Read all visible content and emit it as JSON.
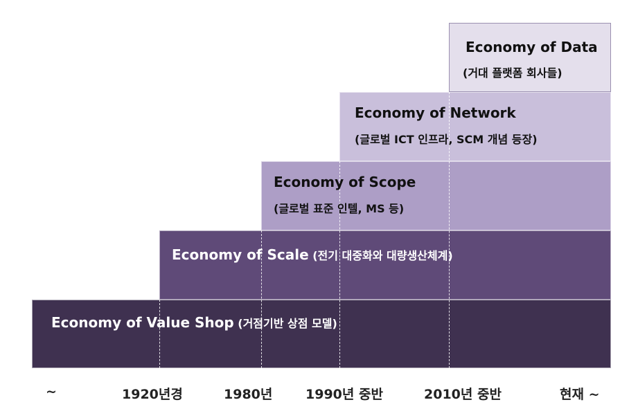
{
  "stages": {
    "value_shop": {
      "title": "Economy of Value Shop",
      "desc": "(거점기반 상점 모델)"
    },
    "scale": {
      "title": "Economy of Scale",
      "desc": "(전기 대중화와 대량생산체계)"
    },
    "scope": {
      "title": "Economy of Scope",
      "desc": "(글로벌 표준 인텔, MS 등)"
    },
    "network": {
      "title": "Economy of Network",
      "desc": "(글로벌 ICT 인프라, SCM 개념 등장)"
    },
    "data": {
      "title": "Economy of Data",
      "desc": "(거대 플랫폼 회사들)"
    }
  },
  "timeline": {
    "ticks": [
      "~",
      "1920년경",
      "1980년",
      "1990년 중반",
      "2010년 중반",
      "현재 ~"
    ]
  },
  "colors": {
    "value_shop": "#3f3150",
    "scale": "#5f4a78",
    "scope": "#ad9ec6",
    "network": "#c9bfdb",
    "data": "#e4dfec"
  }
}
